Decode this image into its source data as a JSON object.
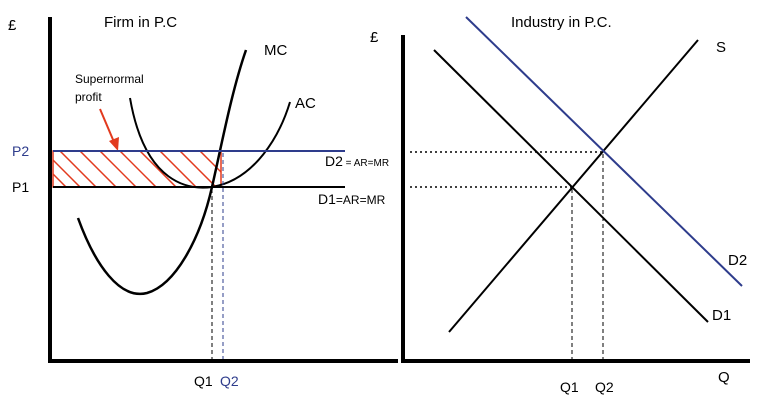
{
  "colors": {
    "axis": "#000000",
    "curve": "#000000",
    "blue": "#2e3c8c",
    "red": "#e23a1e"
  },
  "firm": {
    "title": "Firm in P.C",
    "y_axis_label": "£",
    "mc_label": "MC",
    "ac_label": "AC",
    "supernormal_line1": "Supernormal",
    "supernormal_line2": "profit",
    "p2_label": "P2",
    "p1_label": "P1",
    "d2_label_main": "D2",
    "d2_label_small": " = AR=MR",
    "d1_label_main": "D1",
    "d1_label_small": "=AR=MR",
    "q1_label": "Q1",
    "q2_label": "Q2"
  },
  "industry": {
    "title": "Industry in P.C.",
    "y_axis_label": "£",
    "x_axis_label": "Q",
    "s_label": "S",
    "d2_label": "D2",
    "d1_label": "D1",
    "q1_label": "Q1",
    "q2_label": "Q2"
  }
}
